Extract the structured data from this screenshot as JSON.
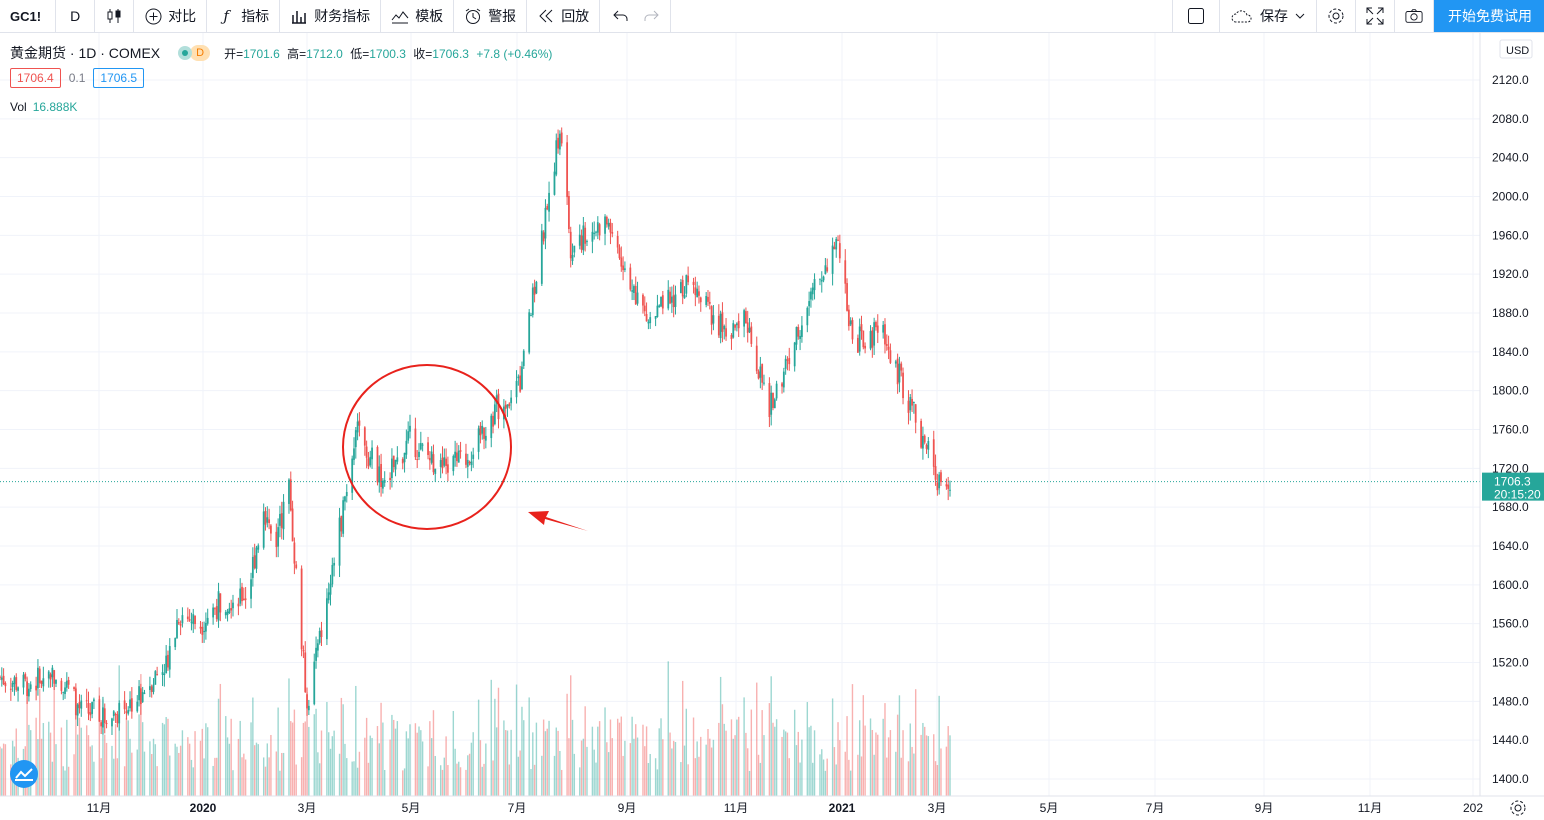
{
  "toolbar": {
    "symbol": "GC1!",
    "interval": "D",
    "compare": "对比",
    "indicators": "指标",
    "financials": "财务指标",
    "templates": "模板",
    "alerts": "警报",
    "replay": "回放",
    "save": "保存",
    "trial": "开始免费试用"
  },
  "legend": {
    "title": "黄金期货 · 1D · COMEX",
    "badge": "D",
    "open_label": "开=",
    "open": "1701.6",
    "high_label": "高=",
    "high": "1712.0",
    "low_label": "低=",
    "low": "1700.3",
    "close_label": "收=",
    "close": "1706.3",
    "change": "+7.8 (+0.46%)"
  },
  "quote": {
    "bid": "1706.4",
    "spread": "0.1",
    "ask": "1706.5"
  },
  "volume": {
    "label": "Vol",
    "value": "16.888K"
  },
  "price_axis": {
    "currency": "USD",
    "ticks": [
      "2120.0",
      "2080.0",
      "2040.0",
      "2000.0",
      "1960.0",
      "1920.0",
      "1880.0",
      "1840.0",
      "1800.0",
      "1760.0",
      "1720.0",
      "1680.0",
      "1640.0",
      "1600.0",
      "1560.0",
      "1520.0",
      "1480.0",
      "1440.0",
      "1400.0"
    ],
    "last_price": "1706.3",
    "countdown": "20:15:20"
  },
  "time_axis": [
    "11月",
    "2020",
    "3月",
    "5月",
    "7月",
    "9月",
    "11月",
    "2021",
    "3月",
    "5月",
    "7月",
    "9月",
    "11月",
    "202"
  ],
  "colors": {
    "up": "#26a69a",
    "down": "#ef5350",
    "accent": "#2196f3",
    "annotation": "#e8221c"
  },
  "chart_data": {
    "type": "candlestick",
    "ylim": [
      1390,
      2140
    ],
    "price_series": [
      [
        "2019-10-01",
        1505
      ],
      [
        "2019-10-15",
        1496
      ],
      [
        "2019-11-01",
        1512
      ],
      [
        "2019-11-15",
        1470
      ],
      [
        "2019-12-01",
        1466
      ],
      [
        "2019-12-15",
        1482
      ],
      [
        "2020-01-01",
        1520
      ],
      [
        "2020-01-08",
        1570
      ],
      [
        "2020-01-20",
        1560
      ],
      [
        "2020-02-01",
        1585
      ],
      [
        "2020-02-15",
        1590
      ],
      [
        "2020-02-24",
        1680
      ],
      [
        "2020-03-01",
        1640
      ],
      [
        "2020-03-09",
        1700
      ],
      [
        "2020-03-19",
        1475
      ],
      [
        "2020-04-01",
        1600
      ],
      [
        "2020-04-15",
        1760
      ],
      [
        "2020-05-01",
        1705
      ],
      [
        "2020-05-15",
        1750
      ],
      [
        "2020-06-01",
        1720
      ],
      [
        "2020-06-15",
        1730
      ],
      [
        "2020-07-01",
        1780
      ],
      [
        "2020-07-15",
        1810
      ],
      [
        "2020-08-06",
        2070
      ],
      [
        "2020-08-12",
        1950
      ],
      [
        "2020-09-01",
        1975
      ],
      [
        "2020-09-24",
        1870
      ],
      [
        "2020-10-15",
        1910
      ],
      [
        "2020-11-09",
        1855
      ],
      [
        "2020-11-15",
        1890
      ],
      [
        "2020-11-30",
        1780
      ],
      [
        "2020-12-15",
        1860
      ],
      [
        "2021-01-06",
        1955
      ],
      [
        "2021-01-15",
        1850
      ],
      [
        "2021-02-01",
        1860
      ],
      [
        "2021-02-15",
        1790
      ],
      [
        "2021-03-01",
        1720
      ],
      [
        "2021-03-08",
        1690
      ],
      [
        "2021-03-10",
        1706
      ]
    ]
  }
}
